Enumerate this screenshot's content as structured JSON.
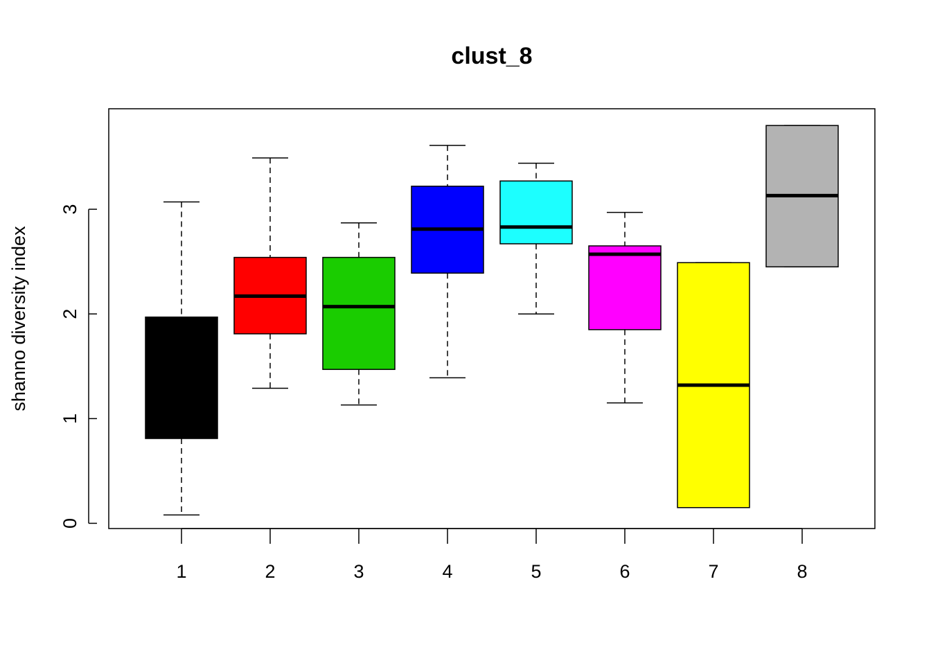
{
  "chart_data": {
    "type": "boxplot",
    "title": "clust_8",
    "xlabel": "",
    "ylabel": "shanno diversity index",
    "categories": [
      "1",
      "2",
      "3",
      "4",
      "5",
      "6",
      "7",
      "8"
    ],
    "y_ticks": [
      "0",
      "1",
      "2",
      "3"
    ],
    "ylim": [
      -0.05,
      3.96
    ],
    "grid": false,
    "legend": "none",
    "boxes": [
      {
        "category": "1",
        "min": 0.08,
        "q1": 0.81,
        "median": 1.35,
        "q3": 1.97,
        "max": 3.07,
        "color": "#000000"
      },
      {
        "category": "2",
        "min": 1.29,
        "q1": 1.81,
        "median": 2.17,
        "q3": 2.54,
        "max": 3.49,
        "color": "#FF0000"
      },
      {
        "category": "3",
        "min": 1.13,
        "q1": 1.47,
        "median": 2.07,
        "q3": 2.54,
        "max": 2.87,
        "color": "#1ACC00"
      },
      {
        "category": "4",
        "min": 1.39,
        "q1": 2.39,
        "median": 2.81,
        "q3": 3.22,
        "max": 3.61,
        "color": "#0000FF"
      },
      {
        "category": "5",
        "min": 2.0,
        "q1": 2.67,
        "median": 2.83,
        "q3": 3.27,
        "max": 3.44,
        "color": "#1CFFFF"
      },
      {
        "category": "6",
        "min": 1.15,
        "q1": 1.85,
        "median": 2.57,
        "q3": 2.65,
        "max": 2.97,
        "color": "#FF00FF"
      },
      {
        "category": "7",
        "min": 0.15,
        "q1": 0.15,
        "median": 1.32,
        "q3": 2.49,
        "max": 2.49,
        "color": "#FFFF00"
      },
      {
        "category": "8",
        "min": 2.45,
        "q1": 2.45,
        "median": 3.13,
        "q3": 3.8,
        "max": 3.8,
        "color": "#B3B3B3"
      }
    ]
  }
}
